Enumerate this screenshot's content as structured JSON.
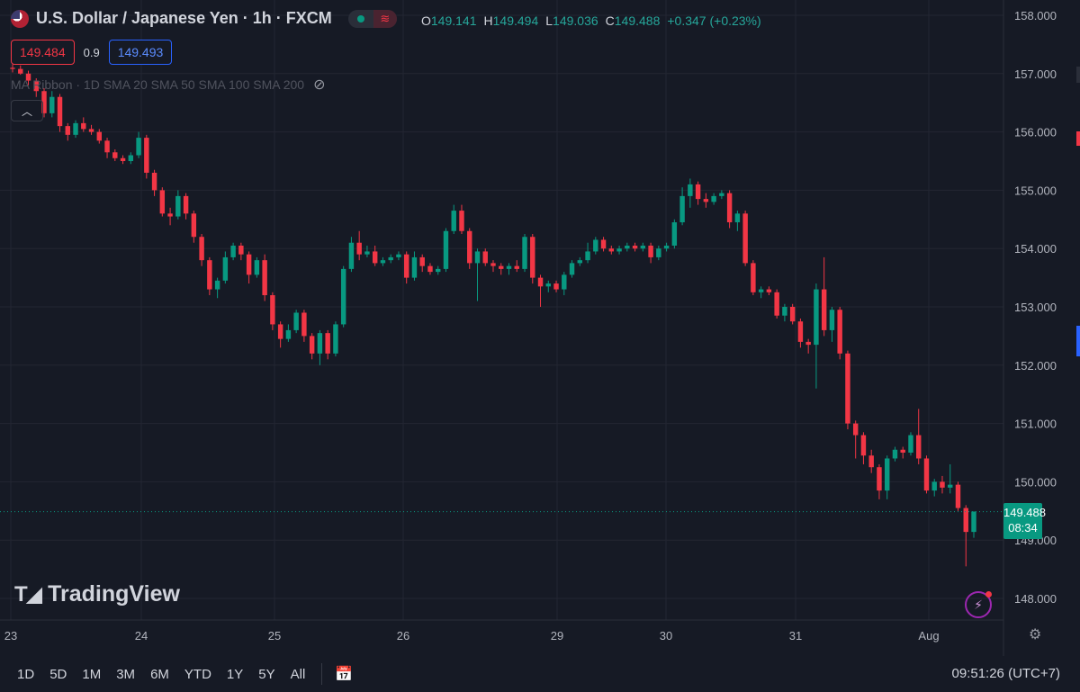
{
  "header": {
    "title": "U.S. Dollar / Japanese Yen · 1h · FXCM",
    "ohlc": {
      "o_label": "O",
      "o": "149.141",
      "h_label": "H",
      "h": "149.494",
      "l_label": "L",
      "l": "149.036",
      "c_label": "C",
      "c": "149.488",
      "change": "+0.347 (+0.23%)"
    }
  },
  "quotes": {
    "sell": "149.484",
    "spread": "0.9",
    "buy": "149.493"
  },
  "indicator": {
    "text": "MA Ribbon · 1D SMA 20 SMA 50 SMA 100 SMA 200"
  },
  "logo": {
    "text": "TradingView"
  },
  "price_tag": {
    "price": "149.488",
    "countdown": "08:34"
  },
  "timeframes": [
    "1D",
    "5D",
    "1M",
    "3M",
    "6M",
    "YTD",
    "1Y",
    "5Y",
    "All"
  ],
  "clock": "09:51:26 (UTC+7)",
  "colors": {
    "up": "#089981",
    "down": "#f23645",
    "bg": "#161a25",
    "grid": "#232632",
    "axis_text": "#b2b5be"
  },
  "chart_data": {
    "type": "candlestick",
    "y_ticks": [
      "158.000",
      "157.000",
      "156.000",
      "155.000",
      "154.000",
      "153.000",
      "152.000",
      "151.000",
      "150.000",
      "149.000",
      "148.000"
    ],
    "ylim": [
      147.6,
      158.2
    ],
    "x_ticks": [
      "23",
      "24",
      "25",
      "26",
      "29",
      "30",
      "31",
      "Aug"
    ],
    "last_price": 149.488,
    "candles_ohlc": [
      [
        157.1,
        157.16,
        157.02,
        157.08
      ],
      [
        157.08,
        157.14,
        156.98,
        157.0
      ],
      [
        157.0,
        157.05,
        156.8,
        156.88
      ],
      [
        156.88,
        156.92,
        156.6,
        156.7
      ],
      [
        156.7,
        156.75,
        156.25,
        156.32
      ],
      [
        156.32,
        156.7,
        156.25,
        156.6
      ],
      [
        156.6,
        156.65,
        156.0,
        156.1
      ],
      [
        156.1,
        156.15,
        155.85,
        155.95
      ],
      [
        155.95,
        156.2,
        155.9,
        156.15
      ],
      [
        156.15,
        156.25,
        156.0,
        156.05
      ],
      [
        156.05,
        156.12,
        155.95,
        156.0
      ],
      [
        156.0,
        156.05,
        155.8,
        155.85
      ],
      [
        155.85,
        155.9,
        155.55,
        155.65
      ],
      [
        155.65,
        155.7,
        155.5,
        155.55
      ],
      [
        155.55,
        155.6,
        155.45,
        155.5
      ],
      [
        155.5,
        155.65,
        155.45,
        155.6
      ],
      [
        155.6,
        156.0,
        155.55,
        155.9
      ],
      [
        155.9,
        155.95,
        155.2,
        155.3
      ],
      [
        155.3,
        155.35,
        154.9,
        155.0
      ],
      [
        155.0,
        155.05,
        154.55,
        154.6
      ],
      [
        154.6,
        154.7,
        154.4,
        154.55
      ],
      [
        154.55,
        155.0,
        154.5,
        154.9
      ],
      [
        154.9,
        154.95,
        154.5,
        154.6
      ],
      [
        154.6,
        154.65,
        154.1,
        154.2
      ],
      [
        154.2,
        154.25,
        153.7,
        153.8
      ],
      [
        153.8,
        153.85,
        153.2,
        153.3
      ],
      [
        153.3,
        153.5,
        153.15,
        153.45
      ],
      [
        153.45,
        153.95,
        153.4,
        153.85
      ],
      [
        153.85,
        154.1,
        153.8,
        154.05
      ],
      [
        154.05,
        154.1,
        153.8,
        153.9
      ],
      [
        153.9,
        153.95,
        153.4,
        153.55
      ],
      [
        153.55,
        153.85,
        153.5,
        153.8
      ],
      [
        153.8,
        153.9,
        153.1,
        153.2
      ],
      [
        153.2,
        153.25,
        152.6,
        152.7
      ],
      [
        152.7,
        152.75,
        152.3,
        152.45
      ],
      [
        152.45,
        152.7,
        152.4,
        152.6
      ],
      [
        152.6,
        152.95,
        152.55,
        152.9
      ],
      [
        152.9,
        152.95,
        152.4,
        152.5
      ],
      [
        152.5,
        152.55,
        152.1,
        152.2
      ],
      [
        152.2,
        152.6,
        152.0,
        152.55
      ],
      [
        152.55,
        152.6,
        152.1,
        152.2
      ],
      [
        152.2,
        152.75,
        152.15,
        152.7
      ],
      [
        152.7,
        153.7,
        152.65,
        153.65
      ],
      [
        153.65,
        154.2,
        153.6,
        154.1
      ],
      [
        154.1,
        154.3,
        153.8,
        153.9
      ],
      [
        153.9,
        154.05,
        153.85,
        153.95
      ],
      [
        153.95,
        154.05,
        153.7,
        153.75
      ],
      [
        153.75,
        153.85,
        153.7,
        153.8
      ],
      [
        153.8,
        153.9,
        153.75,
        153.85
      ],
      [
        153.85,
        153.95,
        153.8,
        153.9
      ],
      [
        153.9,
        153.95,
        153.4,
        153.5
      ],
      [
        153.5,
        153.95,
        153.45,
        153.85
      ],
      [
        153.85,
        153.9,
        153.6,
        153.7
      ],
      [
        153.7,
        153.75,
        153.55,
        153.6
      ],
      [
        153.6,
        153.7,
        153.55,
        153.65
      ],
      [
        153.65,
        154.35,
        153.6,
        154.3
      ],
      [
        154.3,
        154.75,
        154.25,
        154.65
      ],
      [
        154.65,
        154.75,
        154.25,
        154.3
      ],
      [
        154.3,
        154.35,
        153.65,
        153.75
      ],
      [
        153.75,
        154.0,
        153.1,
        153.95
      ],
      [
        153.95,
        154.0,
        153.7,
        153.75
      ],
      [
        153.75,
        153.8,
        153.6,
        153.7
      ],
      [
        153.7,
        153.75,
        153.55,
        153.65
      ],
      [
        153.65,
        153.75,
        153.55,
        153.7
      ],
      [
        153.7,
        153.8,
        153.6,
        153.65
      ],
      [
        153.65,
        154.25,
        153.6,
        154.2
      ],
      [
        154.2,
        154.25,
        153.4,
        153.5
      ],
      [
        153.5,
        153.55,
        153.0,
        153.35
      ],
      [
        153.35,
        153.45,
        153.25,
        153.4
      ],
      [
        153.4,
        153.45,
        153.25,
        153.3
      ],
      [
        153.3,
        153.6,
        153.2,
        153.55
      ],
      [
        153.55,
        153.8,
        153.5,
        153.75
      ],
      [
        153.75,
        153.85,
        153.7,
        153.8
      ],
      [
        153.8,
        154.1,
        153.75,
        153.95
      ],
      [
        153.95,
        154.2,
        153.9,
        154.15
      ],
      [
        154.15,
        154.2,
        153.95,
        154.0
      ],
      [
        154.0,
        154.05,
        153.9,
        153.95
      ],
      [
        153.95,
        154.05,
        153.9,
        154.0
      ],
      [
        154.0,
        154.1,
        153.95,
        154.05
      ],
      [
        154.05,
        154.1,
        153.95,
        154.0
      ],
      [
        154.0,
        154.1,
        153.95,
        154.05
      ],
      [
        154.05,
        154.1,
        153.75,
        153.85
      ],
      [
        153.85,
        154.05,
        153.8,
        154.0
      ],
      [
        154.0,
        154.1,
        153.95,
        154.05
      ],
      [
        154.05,
        154.5,
        154.0,
        154.45
      ],
      [
        154.45,
        155.05,
        154.4,
        154.9
      ],
      [
        154.9,
        155.2,
        154.7,
        155.1
      ],
      [
        155.1,
        155.15,
        154.75,
        154.85
      ],
      [
        154.85,
        154.95,
        154.7,
        154.8
      ],
      [
        154.8,
        154.95,
        154.75,
        154.9
      ],
      [
        154.9,
        155.0,
        154.85,
        154.95
      ],
      [
        154.95,
        155.0,
        154.35,
        154.45
      ],
      [
        154.45,
        154.65,
        154.3,
        154.6
      ],
      [
        154.6,
        154.65,
        153.7,
        153.75
      ],
      [
        153.75,
        153.8,
        153.2,
        153.25
      ],
      [
        153.25,
        153.35,
        153.15,
        153.3
      ],
      [
        153.3,
        153.35,
        153.2,
        153.25
      ],
      [
        153.25,
        153.3,
        152.8,
        152.85
      ],
      [
        152.85,
        153.05,
        152.75,
        153.0
      ],
      [
        153.0,
        153.05,
        152.7,
        152.75
      ],
      [
        152.75,
        152.8,
        152.3,
        152.4
      ],
      [
        152.4,
        152.45,
        152.2,
        152.35
      ],
      [
        152.35,
        153.4,
        151.6,
        153.3
      ],
      [
        153.3,
        153.85,
        152.5,
        152.6
      ],
      [
        152.6,
        153.0,
        152.4,
        152.95
      ],
      [
        152.95,
        153.0,
        152.1,
        152.2
      ],
      [
        152.2,
        152.25,
        150.9,
        151.0
      ],
      [
        151.0,
        151.05,
        150.4,
        150.8
      ],
      [
        150.8,
        150.85,
        150.3,
        150.45
      ],
      [
        150.45,
        150.55,
        150.15,
        150.25
      ],
      [
        150.25,
        150.3,
        149.7,
        149.85
      ],
      [
        149.85,
        150.45,
        149.7,
        150.4
      ],
      [
        150.4,
        150.6,
        150.35,
        150.55
      ],
      [
        150.55,
        150.6,
        150.4,
        150.5
      ],
      [
        150.5,
        150.85,
        150.45,
        150.8
      ],
      [
        150.8,
        151.25,
        150.3,
        150.4
      ],
      [
        150.4,
        150.45,
        149.8,
        149.85
      ],
      [
        149.85,
        150.05,
        149.75,
        150.0
      ],
      [
        150.0,
        150.1,
        149.8,
        149.9
      ],
      [
        149.9,
        150.3,
        149.8,
        149.95
      ],
      [
        149.95,
        150.0,
        149.5,
        149.55
      ],
      [
        149.55,
        149.6,
        148.55,
        149.14
      ],
      [
        149.14,
        149.49,
        149.04,
        149.49
      ]
    ]
  }
}
